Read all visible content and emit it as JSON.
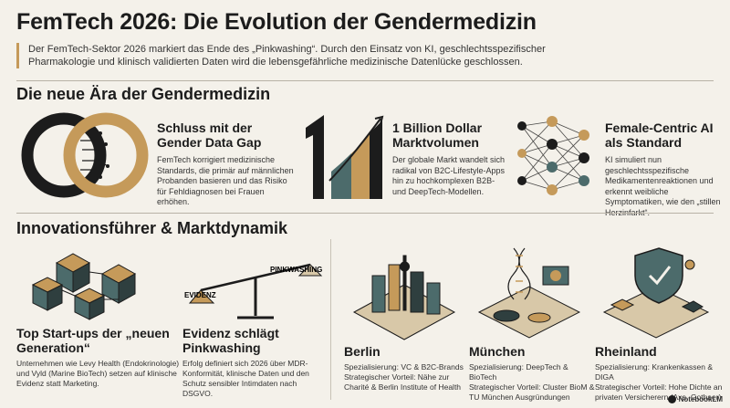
{
  "header": {
    "title": "FemTech 2026: Die Evolution der Gendermedizin",
    "intro": "Der FemTech-Sektor 2026 markiert das Ende des „Pinkwashing“. Durch den Einsatz von KI, geschlechtsspezifischer Pharmakologie und klinisch validierten Daten wird die lebensgefährliche medizinische Datenlücke geschlossen."
  },
  "section1": {
    "title": "Die neue Ära der Gendermedizin",
    "features": [
      {
        "title": "Schluss mit der Gender Data Gap",
        "desc": "FemTech korrigiert medizinische Standards, die primär auf männlichen Probanden basieren und das Risiko für Fehldiagnosen bei Frauen erhöhen.",
        "icon": "gender-rings-icon"
      },
      {
        "title": "1 Billion Dollar Marktvolumen",
        "desc": "Der globale Markt wandelt sich radikal von B2C-Lifestyle-Apps hin zu hochkomplexen B2B- und DeepTech-Modellen.",
        "icon": "market-growth-icon"
      },
      {
        "title": "Female-Centric AI als Standard",
        "desc": "KI simuliert nun geschlechtsspezifische Medikamentenreaktionen und erkennt weibliche Symptomatiken, wie den „stillen Herzinfarkt“.",
        "icon": "neural-network-icon"
      }
    ]
  },
  "section2": {
    "title": "Innovationsführer & Marktdynamik",
    "items": [
      {
        "title": "Top Start-ups der „neuen Generation“",
        "desc": "Unternehmen wie Levy Health (Endokrinologie) und Vyld (Marine BioTech) setzen auf klinische Evidenz statt Marketing.",
        "icon": "startup-cubes-icon"
      },
      {
        "title": "Evidenz schlägt Pinkwashing",
        "desc": "Erfolg definiert sich 2026 über MDR-Konformität, klinische Daten und den Schutz sensibler Intimdaten nach DSGVO.",
        "icon": "balance-scale-icon"
      },
      {
        "title": "Berlin",
        "desc": "Spezialisierung: VC & B2C-Brands\nStrategischer Vorteil: Nähe zur Charité & Berlin Institute of Health",
        "icon": "berlin-city-icon"
      },
      {
        "title": "München",
        "desc": "Spezialisierung: DeepTech & BioTech\nStrategischer Vorteil: Cluster BioM & TU München Ausgründungen",
        "icon": "munich-lab-icon"
      },
      {
        "title": "Rheinland",
        "desc": "Spezialisierung: Krankenkassen & DIGA\nStrategischer Vorteil: Hohe Dichte an privaten Versicherern (Axa, Gothaer)",
        "icon": "rheinland-shield-icon"
      }
    ],
    "scale_labels": {
      "left": "EVIDENZ",
      "right": "PINKWASHING"
    }
  },
  "brand": "NotebookLM",
  "colors": {
    "accent": "#c59a5a",
    "teal": "#4c6b6b",
    "dark": "#1c1c1c",
    "background": "#f4f1ea"
  }
}
